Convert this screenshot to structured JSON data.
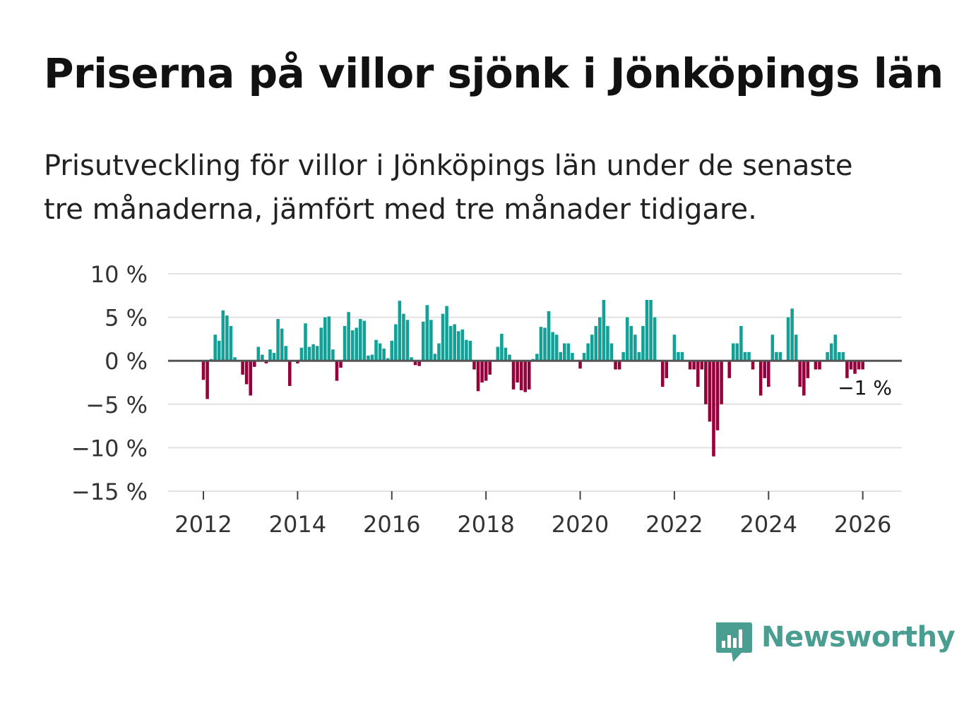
{
  "title": "Priserna på villor sjönk i Jönköpings län",
  "subtitle_line1": "Prisutveckling för villor i Jönköpings län under de senaste",
  "subtitle_line2": "tre månaderna, jämfört med tre månader tidigare.",
  "brand": "Newsworthy",
  "colors": {
    "positive": "#13a096",
    "negative": "#95003b",
    "grid": "#e2e2e2",
    "zero_line": "#555555",
    "brand": "#4a9e91"
  },
  "chart_data": {
    "type": "bar",
    "title": "Priserna på villor sjönk i Jönköpings län",
    "ylabel": "",
    "xlabel": "",
    "ylim": [
      -15,
      10
    ],
    "y_ticks": [
      10,
      5,
      0,
      -5,
      -10,
      -15
    ],
    "y_tick_labels": [
      "10 %",
      "5 %",
      "0 %",
      "−5 %",
      "−10 %",
      "−15 %"
    ],
    "x_range": [
      2011.25,
      2026.83
    ],
    "x_ticks": [
      2012,
      2014,
      2016,
      2018,
      2020,
      2022,
      2024,
      2026
    ],
    "x_tick_labels": [
      "2012",
      "2014",
      "2016",
      "2018",
      "2020",
      "2022",
      "2024",
      "2026"
    ],
    "start_year": 2012,
    "start_month": 1,
    "unit": "%",
    "last_value_label": "−1 %",
    "values": [
      -2.2,
      -4.4,
      0.2,
      3.0,
      2.3,
      5.8,
      5.2,
      4.0,
      0.4,
      0.0,
      -1.6,
      -2.7,
      -4.0,
      -0.7,
      1.6,
      0.7,
      -0.3,
      1.3,
      0.9,
      4.8,
      3.7,
      1.7,
      -2.9,
      0.0,
      -0.3,
      1.5,
      4.3,
      1.6,
      1.9,
      1.7,
      3.8,
      5.0,
      5.1,
      1.3,
      -2.3,
      -0.8,
      4.0,
      5.6,
      3.5,
      3.8,
      4.8,
      4.6,
      0.6,
      0.7,
      2.4,
      2.0,
      1.4,
      0.3,
      2.3,
      4.2,
      6.9,
      5.4,
      4.7,
      0.4,
      -0.5,
      -0.6,
      4.5,
      6.4,
      4.7,
      0.8,
      2.0,
      5.4,
      6.3,
      4.0,
      4.2,
      3.4,
      3.6,
      2.4,
      2.3,
      -1.0,
      -3.5,
      -2.5,
      -2.3,
      -1.6,
      0.0,
      1.6,
      3.1,
      1.5,
      0.7,
      -3.3,
      -2.5,
      -3.4,
      -3.6,
      -3.3,
      0.2,
      0.8,
      3.9,
      3.8,
      5.7,
      3.3,
      3.0,
      1.0,
      2.0,
      2.0,
      0.9,
      0.0,
      -0.9,
      0.9,
      2.0,
      3.0,
      4.0,
      5.0,
      7.0,
      4.0,
      2.0,
      -1.0,
      -1.0,
      1.0,
      5.0,
      4.0,
      3.0,
      1.0,
      4.0,
      7.0,
      7.0,
      5.0,
      0.0,
      -3.0,
      -2.0,
      0.0,
      3.0,
      1.0,
      1.0,
      0.0,
      -1.0,
      -1.0,
      -3.0,
      -1.0,
      -5.0,
      -7.0,
      -11.0,
      -8.0,
      -5.0,
      0.0,
      -2.0,
      2.0,
      2.0,
      4.0,
      1.0,
      1.0,
      -1.0,
      0.0,
      -4.0,
      -2.0,
      -3.0,
      3.0,
      1.0,
      1.0,
      0.0,
      5.0,
      6.0,
      3.0,
      -3.0,
      -4.0,
      -2.0,
      0.0,
      -1.0,
      -1.0,
      0.0,
      1.0,
      2.0,
      3.0,
      1.0,
      1.0,
      -2.0,
      -1.0,
      -1.5,
      -1.0,
      -1.0
    ]
  }
}
